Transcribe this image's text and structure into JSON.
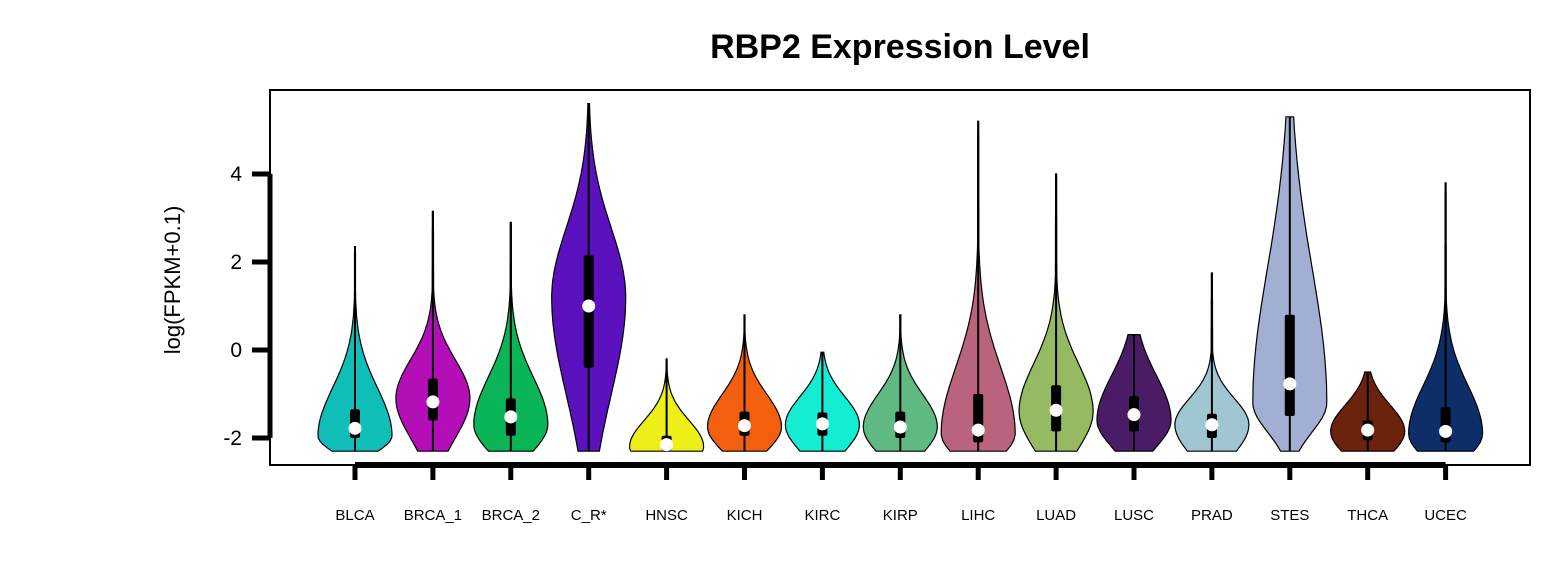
{
  "chart_data": {
    "type": "violin",
    "title": "RBP2 Expression Level",
    "ylabel": "log(FPKM+0.1)",
    "xlabel": "",
    "ylim": [
      -2.6,
      5.9
    ],
    "yticks": [
      "-2",
      "0",
      "2",
      "4"
    ],
    "grid": false,
    "legend": "none",
    "categories": [
      {
        "label": "BLCA",
        "color": "#10BEB8",
        "min": -2.3,
        "max": 2.35,
        "q1": -2.0,
        "median": -1.78,
        "q3": -1.35,
        "peak": -1.95
      },
      {
        "label": "BRCA_1",
        "color": "#B30EB8",
        "min": -2.3,
        "max": 3.15,
        "q1": -1.6,
        "median": -1.18,
        "q3": -0.65,
        "peak": -1.1
      },
      {
        "label": "BRCA_2",
        "color": "#0AB557",
        "min": -2.3,
        "max": 2.9,
        "q1": -1.95,
        "median": -1.52,
        "q3": -1.1,
        "peak": -1.7
      },
      {
        "label": "C_R*",
        "color": "#5B11BD",
        "min": -2.3,
        "max": 5.6,
        "q1": -0.4,
        "median": 1.0,
        "q3": 2.15,
        "peak": 1.2
      },
      {
        "label": "HNSC",
        "color": "#EEEE18",
        "min": -2.3,
        "max": -0.2,
        "q1": -2.28,
        "median": -2.15,
        "q3": -1.95,
        "peak": -2.2
      },
      {
        "label": "KICH",
        "color": "#F2600F",
        "min": -2.3,
        "max": 0.8,
        "q1": -1.95,
        "median": -1.72,
        "q3": -1.4,
        "peak": -1.75
      },
      {
        "label": "KIRC",
        "color": "#12EDD4",
        "min": -2.3,
        "max": -0.05,
        "q1": -1.95,
        "median": -1.68,
        "q3": -1.42,
        "peak": -1.7
      },
      {
        "label": "KIRP",
        "color": "#60B983",
        "min": -2.3,
        "max": 0.8,
        "q1": -2.0,
        "median": -1.75,
        "q3": -1.4,
        "peak": -1.75
      },
      {
        "label": "LIHC",
        "color": "#BA637D",
        "min": -2.3,
        "max": 5.2,
        "q1": -2.1,
        "median": -1.82,
        "q3": -1.0,
        "peak": -1.9
      },
      {
        "label": "LUAD",
        "color": "#96BA62",
        "min": -2.3,
        "max": 4.0,
        "q1": -1.85,
        "median": -1.37,
        "q3": -0.8,
        "peak": -1.4
      },
      {
        "label": "LUSC",
        "color": "#4A1C66",
        "min": -2.3,
        "max": 0.35,
        "q1": -1.85,
        "median": -1.47,
        "q3": -1.05,
        "peak": -1.6
      },
      {
        "label": "PRAD",
        "color": "#A0C6D2",
        "min": -2.3,
        "max": 1.75,
        "q1": -2.0,
        "median": -1.7,
        "q3": -1.45,
        "peak": -1.7
      },
      {
        "label": "STES",
        "color": "#A2AED2",
        "min": -2.3,
        "max": 5.3,
        "q1": -1.5,
        "median": -0.77,
        "q3": 0.8,
        "peak": -1.2
      },
      {
        "label": "THCA",
        "color": "#6B230D",
        "min": -2.3,
        "max": -0.5,
        "q1": -2.05,
        "median": -1.82,
        "q3": -1.6,
        "peak": -1.85
      },
      {
        "label": "UCEC",
        "color": "#0E2E6A",
        "min": -2.3,
        "max": 3.8,
        "q1": -2.1,
        "median": -1.85,
        "q3": -1.3,
        "peak": -1.9
      }
    ]
  }
}
